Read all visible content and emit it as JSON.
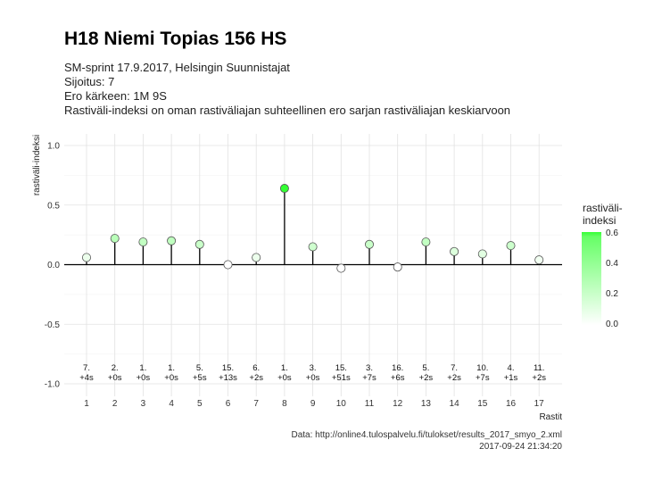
{
  "header": {
    "title": "H18 Niemi Topias 156 HS",
    "subtitle_lines": [
      "SM-sprint 17.9.2017, Helsingin Suunnistajat",
      "Sijoitus: 7",
      "Ero kärkeen: 1M 9S",
      "Rastiväli-indeksi on oman rastiväliajan suhteellinen ero sarjan rastiväliajan keskiarvoon"
    ]
  },
  "caption": {
    "source": "Data: http://online4.tulospalvelu.fi/tulokset/results_2017_smyo_2.xml",
    "timestamp": "2017-09-24 21:34:20"
  },
  "legend": {
    "title_line1": "rastiväli-",
    "title_line2": "indeksi",
    "ticks": [
      "0.6",
      "0.4",
      "0.2",
      "0.0"
    ],
    "color_low": "#ffffff",
    "color_high": "#33ff33"
  },
  "chart_data": {
    "type": "scatter",
    "style": "lollipop",
    "xlabel": "Rastit",
    "ylabel": "rastiväli-indeksi",
    "ylim": [
      -1.0,
      1.0
    ],
    "yticks": [
      "1.0",
      "0.5",
      "0.0",
      "-0.5",
      "-1.0"
    ],
    "xticks": [
      "1",
      "2",
      "3",
      "4",
      "5",
      "6",
      "7",
      "8",
      "9",
      "10",
      "11",
      "12",
      "13",
      "14",
      "15",
      "16",
      "17"
    ],
    "x": [
      1,
      2,
      3,
      4,
      5,
      6,
      7,
      8,
      9,
      10,
      11,
      12,
      13,
      14,
      15,
      16,
      17
    ],
    "values": [
      0.06,
      0.22,
      0.19,
      0.2,
      0.17,
      0.0,
      0.06,
      0.64,
      0.15,
      -0.03,
      0.17,
      -0.02,
      0.19,
      0.11,
      0.09,
      0.16,
      0.04
    ],
    "rank_labels": [
      "7.",
      "2.",
      "1.",
      "1.",
      "5.",
      "15.",
      "6.",
      "1.",
      "3.",
      "15.",
      "3.",
      "16.",
      "5.",
      "7.",
      "10.",
      "4.",
      "11."
    ],
    "diff_labels": [
      "+4s",
      "+0s",
      "+0s",
      "+0s",
      "+5s",
      "+13s",
      "+2s",
      "+0s",
      "+0s",
      "+51s",
      "+7s",
      "+6s",
      "+2s",
      "+2s",
      "+7s",
      "+1s",
      "+2s"
    ],
    "grid": true,
    "legend_position": "right",
    "point_colors": {
      "low": "#ffffff",
      "high": "#33ff33"
    }
  }
}
